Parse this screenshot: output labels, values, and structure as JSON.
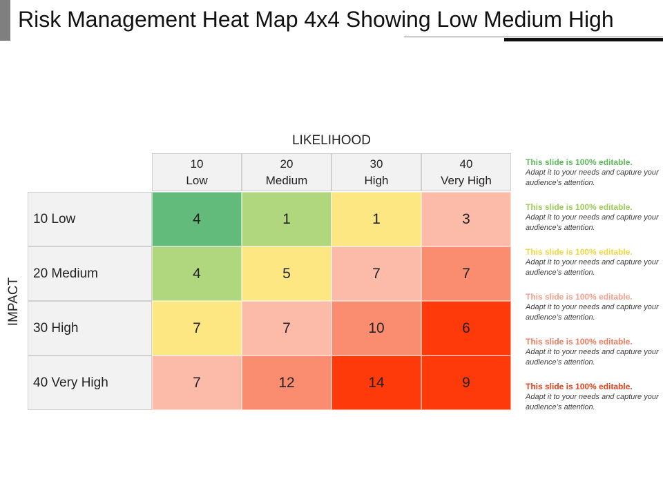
{
  "slide": {
    "title": "Risk Management Heat Map 4x4 Showing Low Medium High"
  },
  "chart_data": {
    "type": "heatmap",
    "xlabel": "LIKELIHOOD",
    "ylabel": "IMPACT",
    "columns": [
      {
        "value": "10",
        "label": "Low"
      },
      {
        "value": "20",
        "label": "Medium"
      },
      {
        "value": "30",
        "label": "High"
      },
      {
        "value": "40",
        "label": "Very High"
      }
    ],
    "rows": [
      "10 Low",
      "20 Medium",
      "30 High",
      "40 Very High"
    ],
    "values": [
      [
        4,
        1,
        1,
        3
      ],
      [
        4,
        5,
        7,
        7
      ],
      [
        7,
        7,
        10,
        6
      ],
      [
        7,
        12,
        14,
        9
      ]
    ],
    "colors": [
      [
        "#62bb7a",
        "#b0d67e",
        "#fce782",
        "#fcbba8"
      ],
      [
        "#b0d67e",
        "#fce782",
        "#fcbba8",
        "#fa8c70"
      ],
      [
        "#fce782",
        "#fcbba8",
        "#fa8c70",
        "#ff3a0a"
      ],
      [
        "#fcbba8",
        "#fa8c70",
        "#ff3a0a",
        "#ff3a0a"
      ]
    ]
  },
  "notes": [
    {
      "heading": "This slide is 100%  editable.",
      "body": "Adapt it to your needs and capture your audience’s attention.",
      "color": "#5cb85c"
    },
    {
      "heading": "This slide is 100%  editable.",
      "body": "Adapt it to your needs and capture your audience’s attention.",
      "color": "#9ccc5a"
    },
    {
      "heading": "This slide is 100%  editable.",
      "body": "Adapt it to your needs and capture your audience’s attention.",
      "color": "#f0d640"
    },
    {
      "heading": "This slide is 100%  editable.",
      "body": "Adapt it to your needs and capture your audience’s attention.",
      "color": "#f5a08a"
    },
    {
      "heading": "This slide is 100%  editable.",
      "body": "Adapt it to your needs and capture your audience’s attention.",
      "color": "#f07a5c"
    },
    {
      "heading": "This slide is 100%  editable.",
      "body": "Adapt it to your needs and capture your audience’s attention.",
      "color": "#e8401a"
    }
  ]
}
